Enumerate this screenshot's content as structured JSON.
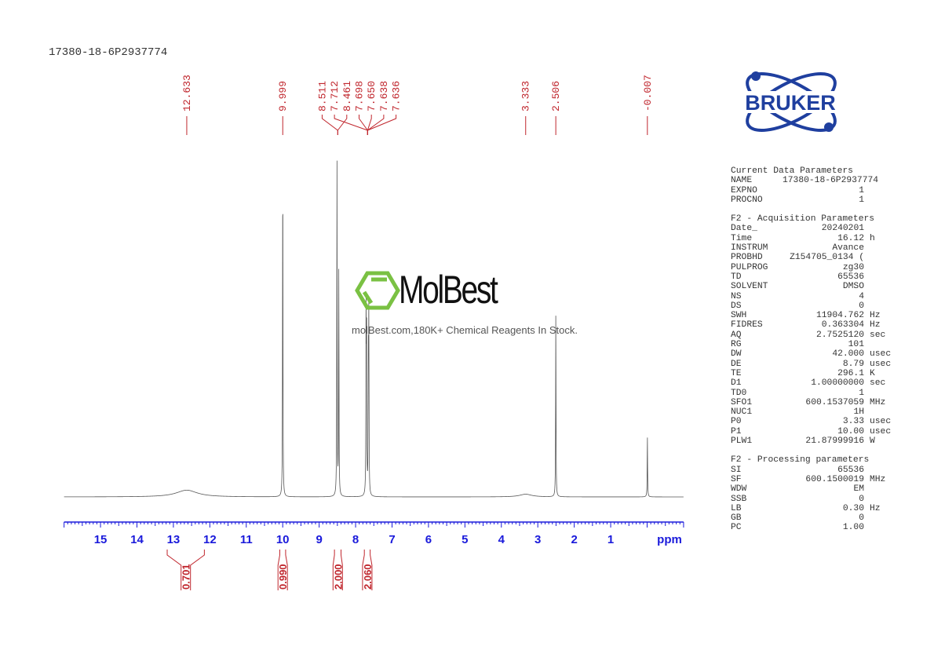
{
  "title": "17380-18-6P2937774",
  "logo": {
    "brand": "BRUKER",
    "color": "#1f3f9f"
  },
  "watermark": {
    "name": "MolBest",
    "tagline": "molBest.com,180K+ Chemical Reagents In Stock.",
    "color": "#7ac143"
  },
  "params": [
    {
      "heading": "Current Data Parameters",
      "rows": [
        [
          "NAME",
          "17380-18-6P2937774",
          ""
        ],
        [
          "EXPNO",
          "1",
          ""
        ],
        [
          "PROCNO",
          "1",
          ""
        ]
      ]
    },
    {
      "heading": "F2 - Acquisition Parameters",
      "rows": [
        [
          "Date_",
          "20240201",
          ""
        ],
        [
          "Time",
          "16.12",
          "h"
        ],
        [
          "INSTRUM",
          "Avance",
          ""
        ],
        [
          "PROBHD",
          "Z154705_0134 (",
          ""
        ],
        [
          "PULPROG",
          "zg30",
          ""
        ],
        [
          "TD",
          "65536",
          ""
        ],
        [
          "SOLVENT",
          "DMSO",
          ""
        ],
        [
          "NS",
          "4",
          ""
        ],
        [
          "DS",
          "0",
          ""
        ],
        [
          "SWH",
          "11904.762",
          "Hz"
        ],
        [
          "FIDRES",
          "0.363304",
          "Hz"
        ],
        [
          "AQ",
          "2.7525120",
          "sec"
        ],
        [
          "RG",
          "101",
          ""
        ],
        [
          "DW",
          "42.000",
          "usec"
        ],
        [
          "DE",
          "8.79",
          "usec"
        ],
        [
          "TE",
          "296.1",
          "K"
        ],
        [
          "D1",
          "1.00000000",
          "sec"
        ],
        [
          "TD0",
          "1",
          ""
        ],
        [
          "SFO1",
          "600.1537059",
          "MHz"
        ],
        [
          "NUC1",
          "1H",
          ""
        ],
        [
          "P0",
          "3.33",
          "usec"
        ],
        [
          "P1",
          "10.00",
          "usec"
        ],
        [
          "PLW1",
          "21.87999916",
          "W"
        ]
      ]
    },
    {
      "heading": "F2 - Processing parameters",
      "rows": [
        [
          "SI",
          "65536",
          ""
        ],
        [
          "SF",
          "600.1500019",
          "MHz"
        ],
        [
          "WDW",
          "EM",
          ""
        ],
        [
          "SSB",
          "0",
          ""
        ],
        [
          "LB",
          "0.30",
          "Hz"
        ],
        [
          "GB",
          "0",
          ""
        ],
        [
          "PC",
          "1.00",
          ""
        ]
      ]
    }
  ],
  "chart_data": {
    "type": "line",
    "xlabel": "ppm",
    "xlim": [
      16,
      -1
    ],
    "xticks": [
      15,
      14,
      13,
      12,
      11,
      10,
      9,
      8,
      7,
      6,
      5,
      4,
      3,
      2,
      1
    ],
    "axis_color": "#1a1adb",
    "label_color": "#c0262d",
    "peaks": [
      {
        "ppm": 12.633,
        "height": 2,
        "width": 0.35
      },
      {
        "ppm": 9.999,
        "height": 100,
        "width": 0.006
      },
      {
        "ppm": 8.511,
        "height": 100,
        "width": 0.006
      },
      {
        "ppm": 8.461,
        "height": 67,
        "width": 0.006
      },
      {
        "ppm": 7.712,
        "height": 55,
        "width": 0.006
      },
      {
        "ppm": 7.698,
        "height": 45,
        "width": 0.006
      },
      {
        "ppm": 7.65,
        "height": 37,
        "width": 0.006
      },
      {
        "ppm": 7.638,
        "height": 28,
        "width": 0.006
      },
      {
        "ppm": 7.636,
        "height": 25,
        "width": 0.006
      },
      {
        "ppm": 3.333,
        "height": 0.8,
        "width": 0.2
      },
      {
        "ppm": 2.506,
        "height": 54,
        "width": 0.006
      },
      {
        "ppm": -0.007,
        "height": 18,
        "width": 0.006
      }
    ],
    "peak_labels": [
      {
        "text": "12.633",
        "ppm": 12.633,
        "group": 0
      },
      {
        "text": "9.999",
        "ppm": 9.999,
        "group": 1
      },
      {
        "text": "8.511",
        "ppm": 8.49,
        "group": 2
      },
      {
        "text": "8.461",
        "ppm": 8.49,
        "group": 2
      },
      {
        "text": "7.712",
        "ppm": 7.67,
        "group": 3
      },
      {
        "text": "7.698",
        "ppm": 7.67,
        "group": 3
      },
      {
        "text": "7.650",
        "ppm": 7.67,
        "group": 3
      },
      {
        "text": "7.638",
        "ppm": 7.67,
        "group": 3
      },
      {
        "text": "7.636",
        "ppm": 7.67,
        "group": 3
      },
      {
        "text": "3.333",
        "ppm": 3.333,
        "group": 4
      },
      {
        "text": "2.506",
        "ppm": 2.506,
        "group": 5
      },
      {
        "text": "-0.007",
        "ppm": -0.007,
        "group": 6
      }
    ],
    "integrals": [
      {
        "from": 13.17,
        "to": 12.15,
        "value": "0.701"
      },
      {
        "from": 10.08,
        "to": 9.92,
        "value": "0.990"
      },
      {
        "from": 8.58,
        "to": 8.4,
        "value": "2.000"
      },
      {
        "from": 7.76,
        "to": 7.6,
        "value": "2.060"
      }
    ]
  }
}
